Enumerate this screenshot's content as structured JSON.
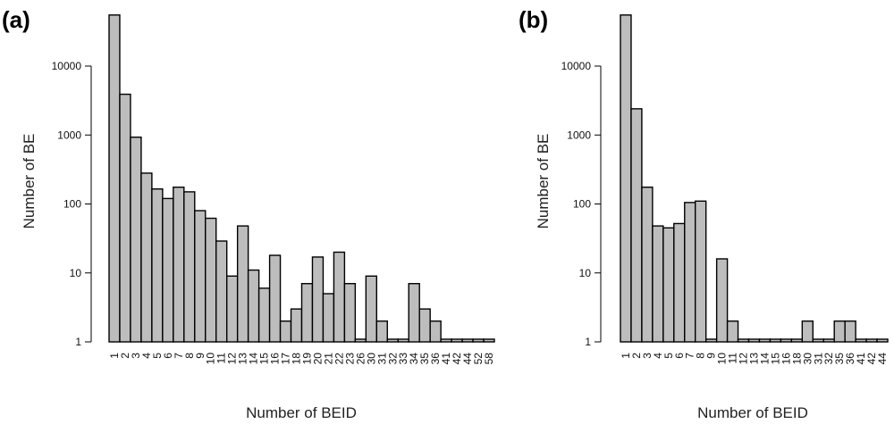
{
  "chart_data": [
    {
      "type": "bar",
      "panel_label": "(a)",
      "xlabel": "Number of BEID",
      "ylabel": "Number of BE",
      "y_scale": "log",
      "ylim": [
        1,
        60000
      ],
      "y_ticks": [
        1,
        10,
        100,
        1000,
        10000
      ],
      "y_tick_labels": [
        "1",
        "10",
        "100",
        "1000",
        "10000"
      ],
      "categories": [
        "1",
        "2",
        "3",
        "4",
        "5",
        "6",
        "7",
        "8",
        "9",
        "10",
        "11",
        "12",
        "13",
        "14",
        "15",
        "16",
        "17",
        "18",
        "19",
        "20",
        "21",
        "22",
        "23",
        "26",
        "30",
        "31",
        "32",
        "33",
        "34",
        "35",
        "36",
        "41",
        "42",
        "44",
        "52",
        "58"
      ],
      "values": [
        55000,
        3900,
        930,
        280,
        165,
        120,
        175,
        150,
        80,
        62,
        29,
        9,
        48,
        11,
        6,
        18,
        2,
        3,
        7,
        17,
        5,
        20,
        7,
        1,
        9,
        2,
        1,
        1,
        7,
        3,
        2,
        1,
        1,
        1,
        1,
        1
      ],
      "bar_color": "#bdbdbd"
    },
    {
      "type": "bar",
      "panel_label": "(b)",
      "xlabel": "Number of BEID",
      "ylabel": "Number of BE",
      "y_scale": "log",
      "ylim": [
        1,
        60000
      ],
      "y_ticks": [
        1,
        10,
        100,
        1000,
        10000
      ],
      "y_tick_labels": [
        "1",
        "10",
        "100",
        "1000",
        "10000"
      ],
      "categories": [
        "1",
        "2",
        "3",
        "4",
        "5",
        "6",
        "7",
        "8",
        "9",
        "10",
        "11",
        "12",
        "13",
        "14",
        "15",
        "16",
        "18",
        "30",
        "31",
        "32",
        "35",
        "36",
        "41",
        "42",
        "44"
      ],
      "values": [
        55000,
        2400,
        175,
        48,
        45,
        52,
        105,
        110,
        1,
        16,
        2,
        1,
        1,
        1,
        1,
        1,
        1,
        2,
        1,
        1,
        2,
        2,
        1,
        1,
        1
      ],
      "bar_color": "#bdbdbd"
    }
  ]
}
